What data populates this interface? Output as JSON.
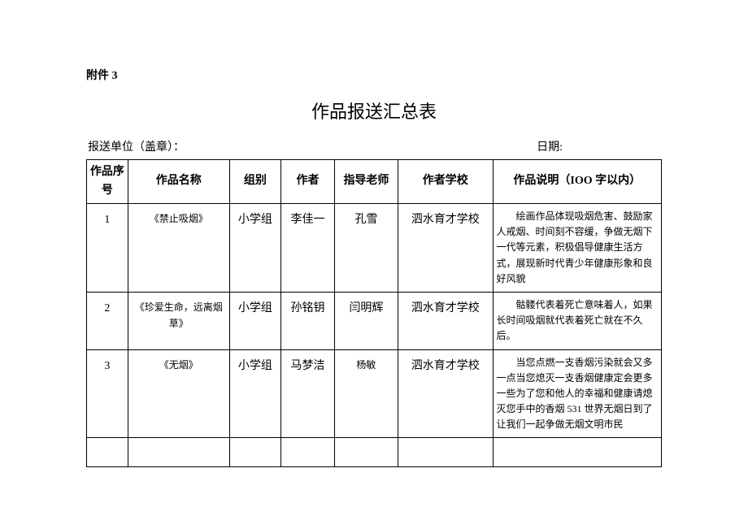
{
  "attachment_label": "附件 3",
  "main_title": "作品报送汇总表",
  "meta": {
    "unit": "报送单位（盖章）：",
    "date": "日期:"
  },
  "table": {
    "columns": {
      "seq": "作品序号",
      "name": "作品名称",
      "group": "组别",
      "author": "作者",
      "teacher": "指导老师",
      "school": "作者学校",
      "desc": "作品说明（IOO 字以内）"
    },
    "rows": [
      {
        "seq": "1",
        "name": "《禁止吸烟》",
        "group": "小学组",
        "author": "李佳一",
        "teacher": "孔雪",
        "school": "泗水育才学校",
        "desc": "绘画作品体现吸烟危害、鼓励家人戒烟、时间刻不容缓，争做无烟下一代等元素，积极倡导健康生活方式，展现新时代青少年健康形象和良好风貌"
      },
      {
        "seq": "2",
        "name": "《珍爱生命，远离烟草》",
        "group": "小学组",
        "author": "孙铭钥",
        "teacher": "闫明辉",
        "school": "泗水育才学校",
        "desc": "骷髅代表着死亡意味着人，如果长时间吸烟就代表着死亡就在不久后。"
      },
      {
        "seq": "3",
        "name": "《无烟》",
        "group": "小学组",
        "author": "马梦洁",
        "teacher": "杨敏",
        "school": "泗水育才学校",
        "desc": "当您点燃一支香烟污染就会又多一点当您熄灭一支香烟健康定会更多一些为了您和他人的幸福和健康请熄灭您手中的香烟 531 世界无烟日到了让我们一起争做无烟文明市民"
      }
    ]
  }
}
